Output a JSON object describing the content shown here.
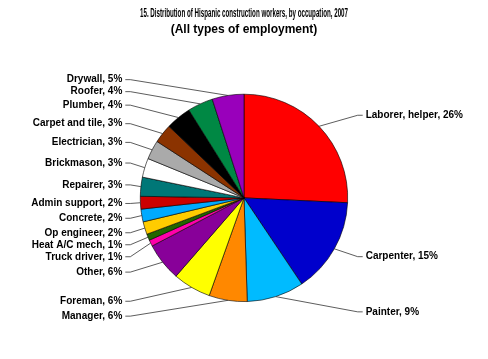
{
  "chart_data": {
    "type": "pie",
    "title": "15. Distribution of Hispanic construction workers, by occupation, 2007",
    "subtitle": "(All types of employment)",
    "categories": [
      "Laborer, helper, 26%",
      "Carpenter, 15%",
      "Painter, 9%",
      "Manager, 6%",
      "Foreman, 6%",
      "Other, 6%",
      "Truck driver, 1%",
      "Heat A/C mech, 1%",
      "Op engineer, 2%",
      "Concrete, 2%",
      "Admin support, 2%",
      "Repairer, 3%",
      "Brickmason, 3%",
      "Electrician, 3%",
      "Carpet and tile, 3%",
      "Plumber, 4%",
      "Roofer, 4%",
      "Drywall, 5%"
    ],
    "values": [
      26,
      15,
      9,
      6,
      6,
      6,
      1,
      1,
      2,
      2,
      2,
      3,
      3,
      3,
      3,
      4,
      4,
      5
    ],
    "colors": [
      "#FF0000",
      "#0000CC",
      "#00BBFF",
      "#FF8800",
      "#FFFF00",
      "#880099",
      "#FF00AA",
      "#226600",
      "#FFCC00",
      "#00AAFF",
      "#CC0000",
      "#007777",
      "#FFFFFF",
      "#AAAAAA",
      "#8B3300",
      "#000000",
      "#008844",
      "#9900BB"
    ]
  }
}
